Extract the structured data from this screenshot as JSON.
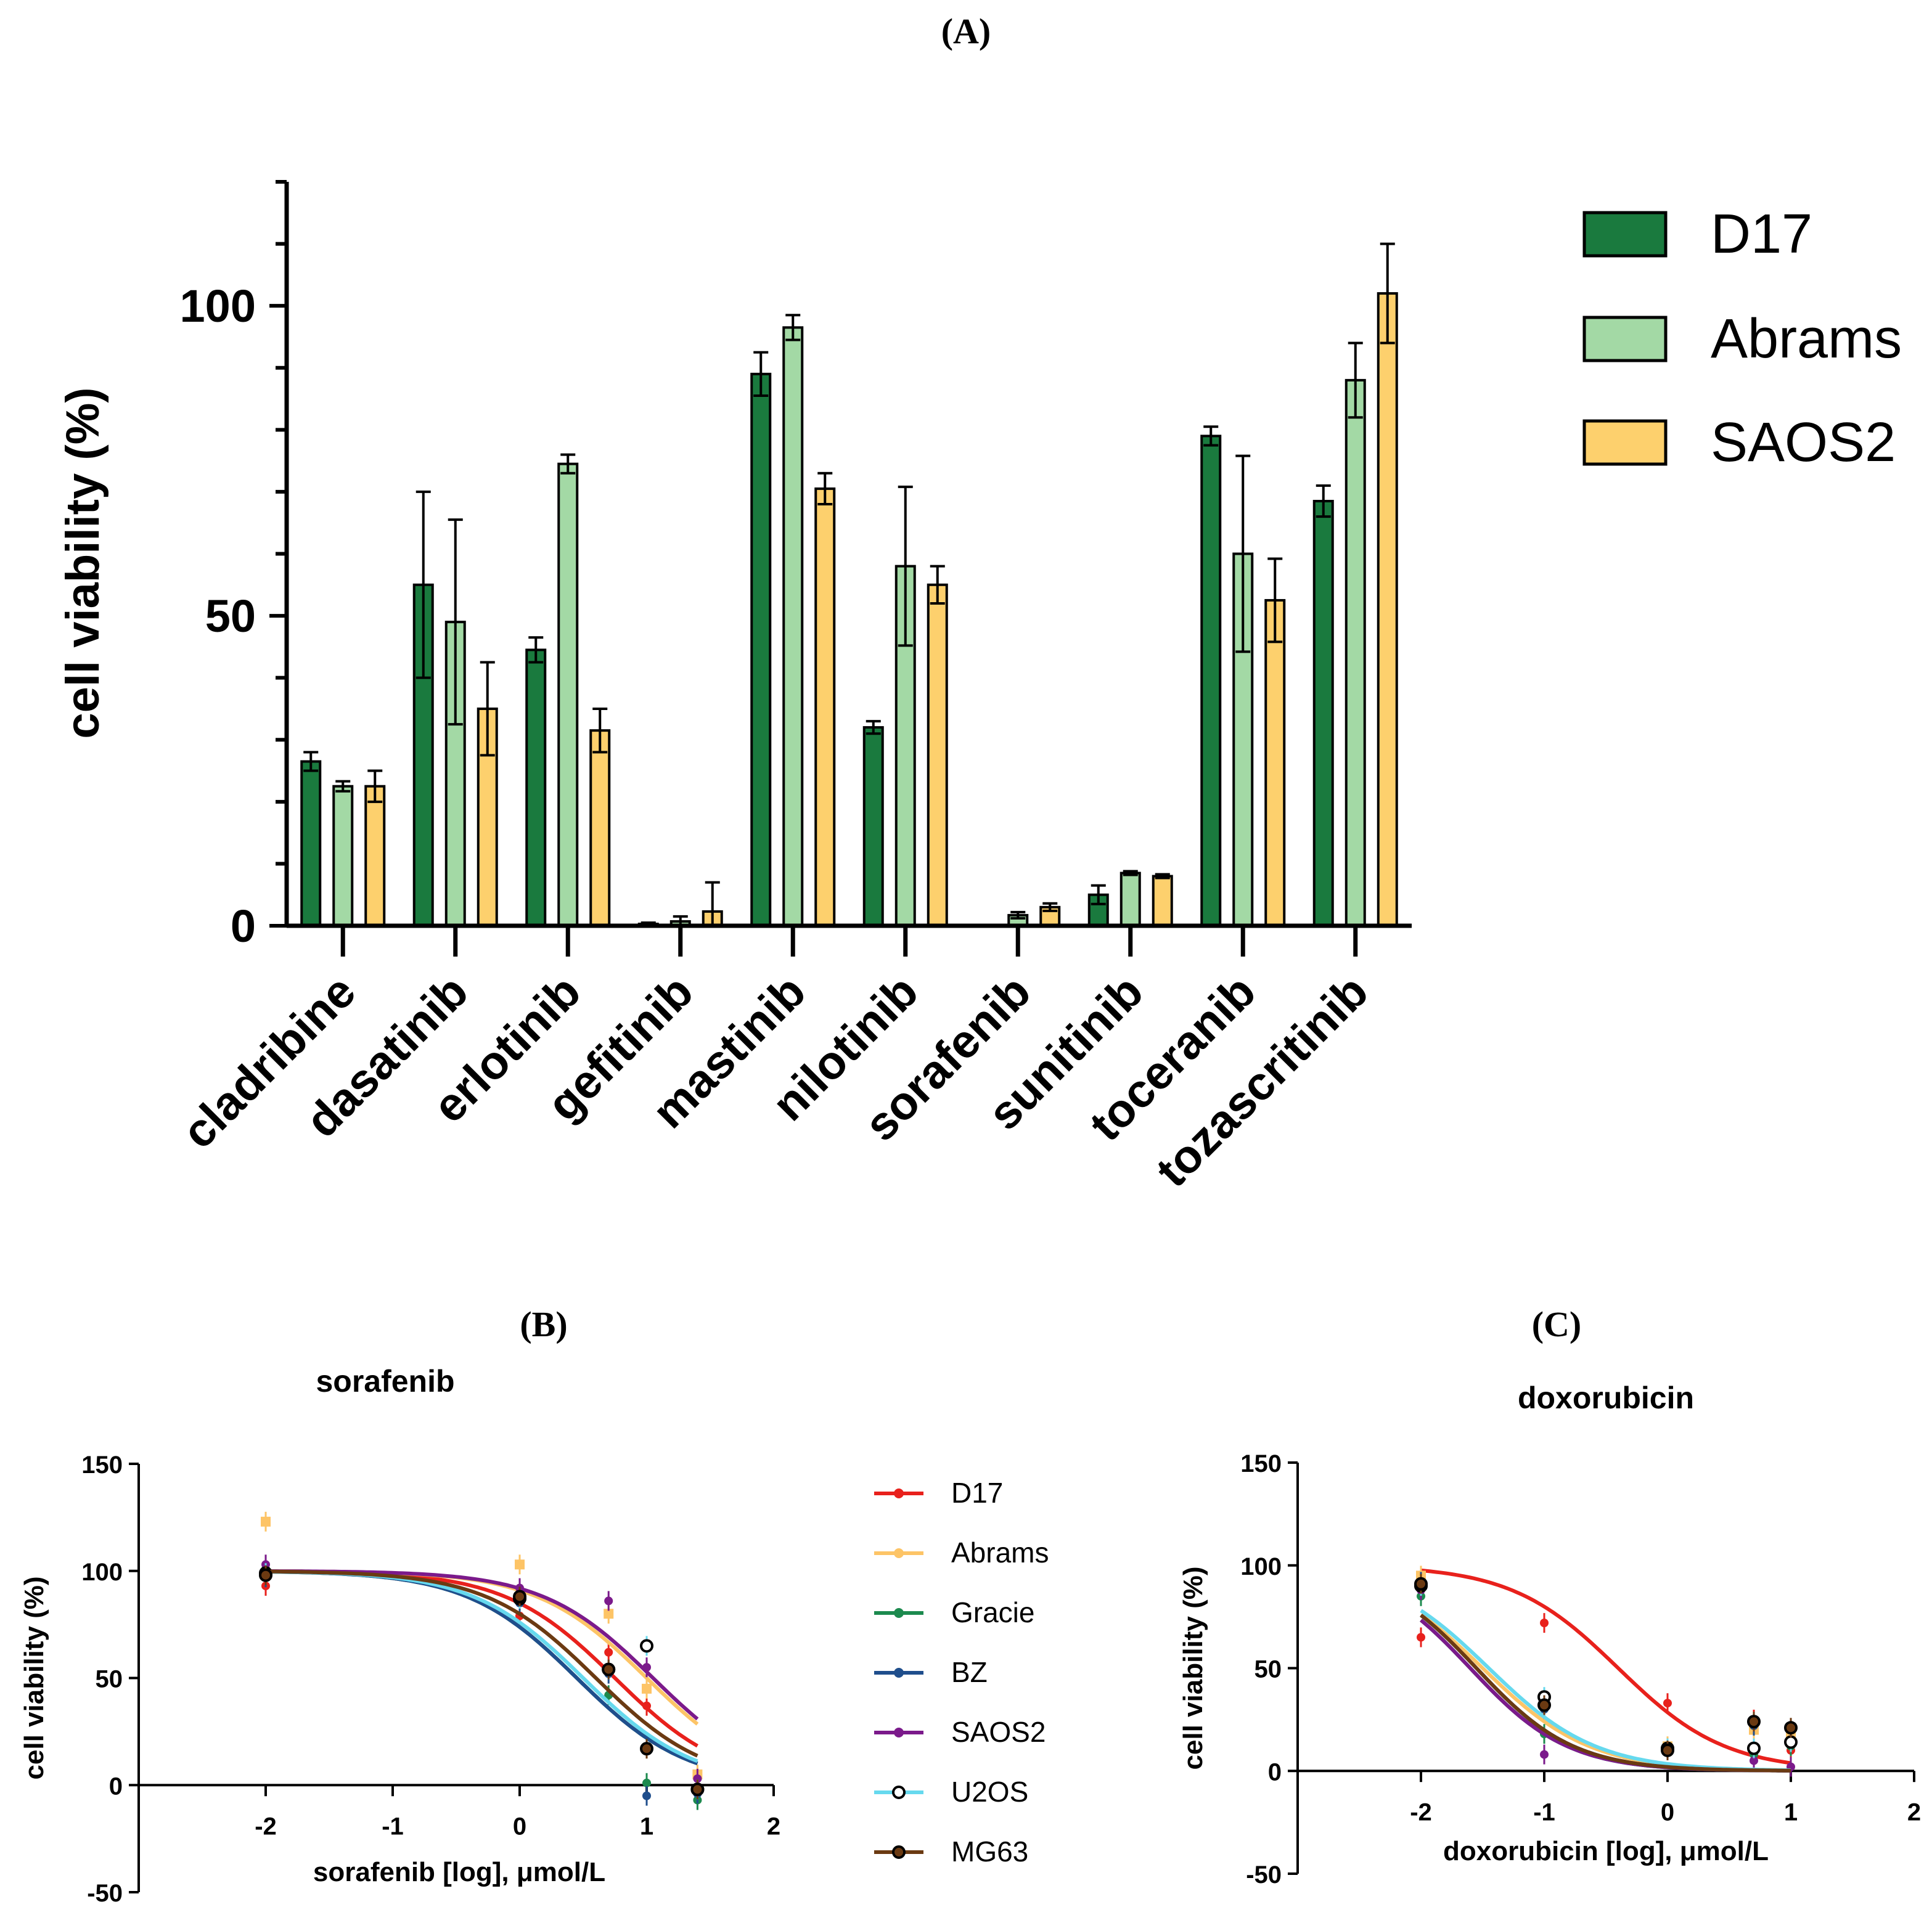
{
  "panels": {
    "a": "(A)",
    "b": "(B)",
    "c": "(C)"
  },
  "chart_data": [
    {
      "type": "bar",
      "title": "",
      "xlabel": "",
      "ylabel": "cell viability (%)",
      "ylim": [
        0,
        120
      ],
      "yticks": [
        0,
        50,
        100
      ],
      "categories": [
        "cladribine",
        "dasatinib",
        "erlotinib",
        "gefitinib",
        "mastinib",
        "nilotinib",
        "sorafenib",
        "sunitinib",
        "toceranib",
        "tozascritinib"
      ],
      "legend_position": "top-right",
      "series": [
        {
          "name": "D17",
          "color": "#1a7a3e",
          "values": [
            26.5,
            55,
            44.5,
            0.3,
            89,
            32,
            0,
            5,
            79,
            68.5
          ],
          "errors": [
            1.5,
            15,
            2,
            0.2,
            3.5,
            1,
            0,
            1.5,
            1.5,
            2.5
          ]
        },
        {
          "name": "Abrams",
          "color": "#a3d9a5",
          "values": [
            22.5,
            49,
            74.5,
            0.7,
            96.5,
            58,
            1.7,
            8.5,
            60,
            88
          ],
          "errors": [
            0.8,
            16.5,
            1.5,
            0.8,
            2,
            12.8,
            0.5,
            0.3,
            15.8,
            6
          ]
        },
        {
          "name": "SAOS2",
          "color": "#fdd06d",
          "values": [
            22.5,
            35,
            31.5,
            2.3,
            70.5,
            55,
            3,
            8,
            52.5,
            102
          ],
          "errors": [
            2.5,
            7.5,
            3.5,
            4.7,
            2.5,
            3,
            0.6,
            0.3,
            6.7,
            8
          ]
        }
      ]
    },
    {
      "type": "line",
      "title": "sorafenib",
      "xlabel": "sorafenib [log], μmol/L",
      "ylabel": "cell viability (%)",
      "xlim": [
        -3,
        2
      ],
      "ylim": [
        -50,
        150
      ],
      "xticks": [
        -2,
        -1,
        0,
        1,
        2
      ],
      "yticks": [
        -50,
        0,
        50,
        100,
        150
      ],
      "legend_position": "right",
      "series": [
        {
          "name": "D17",
          "color": "#e8211c",
          "ec50_log": 0.75,
          "hill": 1,
          "x": [
            -2,
            0,
            0.7,
            1,
            1.4
          ],
          "y": [
            93,
            79,
            62,
            37,
            -3
          ]
        },
        {
          "name": "Abrams",
          "color": "#fdc466",
          "ec50_log": 1.0,
          "hill": 1,
          "x": [
            -2,
            0,
            0.7,
            1,
            1.4
          ],
          "y": [
            123,
            103,
            80,
            45,
            5
          ]
        },
        {
          "name": "Gracie",
          "color": "#1c8a4e",
          "ec50_log": 0.45,
          "hill": 1,
          "x": [
            -2,
            0,
            0.7,
            1,
            1.4
          ],
          "y": [
            101,
            86,
            42,
            1,
            -7
          ]
        },
        {
          "name": "BZ",
          "color": "#1f4e8c",
          "ec50_log": 0.45,
          "hill": 1,
          "x": [
            -2,
            0,
            0.7,
            1,
            1.4
          ],
          "y": [
            97,
            85,
            52,
            -5,
            -4
          ]
        },
        {
          "name": "SAOS2",
          "color": "#7b1a8b",
          "ec50_log": 1.05,
          "hill": 1,
          "x": [
            -2,
            0,
            0.7,
            1,
            1.4
          ],
          "y": [
            103,
            92,
            86,
            55,
            3
          ]
        },
        {
          "name": "U2OS",
          "color": "#66d9ee",
          "ec50_log": 0.5,
          "hill": 1,
          "x": [
            -2,
            0,
            0.7,
            1,
            1.4
          ],
          "y": [
            99,
            87,
            54,
            65,
            -2
          ]
        },
        {
          "name": "MG63",
          "color": "#6b3a12",
          "ec50_log": 0.6,
          "hill": 1,
          "x": [
            -2,
            0,
            0.7,
            1,
            1.4
          ],
          "y": [
            98,
            88,
            54,
            17,
            -2
          ]
        }
      ]
    },
    {
      "type": "line",
      "title": "doxorubicin",
      "xlabel": "doxorubicin [log], μmol/L",
      "ylabel": "cell viability (%)",
      "xlim": [
        -3,
        2
      ],
      "ylim": [
        -50,
        150
      ],
      "xticks": [
        -2,
        -1,
        0,
        1,
        2
      ],
      "yticks": [
        -50,
        0,
        50,
        100,
        150
      ],
      "series": [
        {
          "name": "D17",
          "color": "#e8211c",
          "ec50_log": -0.4,
          "hill": 1,
          "x": [
            -2,
            -1,
            0,
            0.7,
            1
          ],
          "y": [
            65,
            72,
            33,
            25,
            10
          ]
        },
        {
          "name": "Abrams",
          "color": "#fdc466",
          "ec50_log": -1.5,
          "hill": 1,
          "x": [
            -2,
            -1,
            0,
            0.7,
            1
          ],
          "y": [
            95,
            33,
            12,
            20,
            18
          ]
        },
        {
          "name": "Gracie",
          "color": "#1c8a4e",
          "ec50_log": -1.6,
          "hill": 1.1,
          "x": [
            -2,
            -1,
            0,
            0.7,
            1
          ],
          "y": [
            85,
            18,
            10,
            8,
            12
          ]
        },
        {
          "name": "BZ",
          "color": "#1f4e8c",
          "ec50_log": -1.55,
          "hill": 1.1,
          "x": [
            -2,
            -1,
            0,
            0.7,
            1
          ],
          "y": [
            92,
            30,
            10,
            22,
            20
          ]
        },
        {
          "name": "SAOS2",
          "color": "#7b1a8b",
          "ec50_log": -1.6,
          "hill": 1.1,
          "x": [
            -2,
            -1,
            0,
            0.7,
            1
          ],
          "y": [
            88,
            8,
            10,
            5,
            2
          ]
        },
        {
          "name": "U2OS",
          "color": "#66d9ee",
          "ec50_log": -1.45,
          "hill": 1,
          "x": [
            -2,
            -1,
            0,
            0.7,
            1
          ],
          "y": [
            90,
            36,
            11,
            11,
            14
          ]
        },
        {
          "name": "MG63",
          "color": "#6b3a12",
          "ec50_log": -1.55,
          "hill": 1.1,
          "x": [
            -2,
            -1,
            0,
            0.7,
            1
          ],
          "y": [
            91,
            32,
            10,
            24,
            21
          ]
        }
      ]
    }
  ]
}
